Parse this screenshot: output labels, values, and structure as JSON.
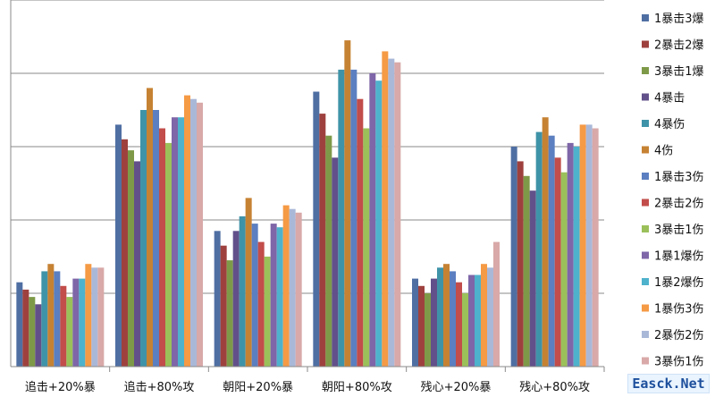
{
  "chart_data": {
    "type": "bar",
    "categories": [
      "追击+20%暴",
      "追击+80%攻",
      "朝阳+20%暴",
      "朝阳+80%攻",
      "残心+20%暴",
      "残心+80%攻"
    ],
    "ylim": [
      0,
      100
    ],
    "grid": true,
    "legend_position": "right",
    "series": [
      {
        "name": "1暴击3爆",
        "color": "#4f6fa3",
        "values": [
          23,
          66,
          37,
          75,
          24,
          60
        ]
      },
      {
        "name": "2暴击2爆",
        "color": "#9e413e",
        "values": [
          21,
          62,
          33,
          69,
          22,
          56
        ]
      },
      {
        "name": "3暴击1爆",
        "color": "#7e9a48",
        "values": [
          19,
          59,
          29,
          63,
          20,
          52
        ]
      },
      {
        "name": "4暴击",
        "color": "#62508a",
        "values": [
          17,
          56,
          37,
          57,
          24,
          48
        ]
      },
      {
        "name": "4暴伤",
        "color": "#3f93a8",
        "values": [
          26,
          70,
          41,
          81,
          27,
          64
        ]
      },
      {
        "name": "4伤",
        "color": "#c68233",
        "values": [
          28,
          76,
          46,
          89,
          28,
          68
        ]
      },
      {
        "name": "1暴击3伤",
        "color": "#5b7fc0",
        "values": [
          26,
          70,
          39,
          81,
          26,
          63
        ]
      },
      {
        "name": "2暴击2伤",
        "color": "#c24d4a",
        "values": [
          22,
          65,
          34,
          73,
          23,
          57
        ]
      },
      {
        "name": "3暴击1伤",
        "color": "#9bc05a",
        "values": [
          19,
          61,
          30,
          65,
          20,
          53
        ]
      },
      {
        "name": "1暴1爆伤",
        "color": "#7e66a8",
        "values": [
          24,
          68,
          39,
          80,
          25,
          61
        ]
      },
      {
        "name": "1暴2爆伤",
        "color": "#4eb2cc",
        "values": [
          24,
          68,
          38,
          78,
          25,
          60
        ]
      },
      {
        "name": "1暴伤3伤",
        "color": "#f59a45",
        "values": [
          28,
          74,
          44,
          86,
          28,
          66
        ]
      },
      {
        "name": "2暴伤2伤",
        "color": "#aab8d8",
        "values": [
          27,
          73,
          43,
          84,
          27,
          66
        ]
      },
      {
        "name": "3暴伤1伤",
        "color": "#d8a9a8",
        "values": [
          27,
          72,
          42,
          83,
          34,
          65
        ]
      }
    ]
  },
  "watermark": "Easck.Net"
}
